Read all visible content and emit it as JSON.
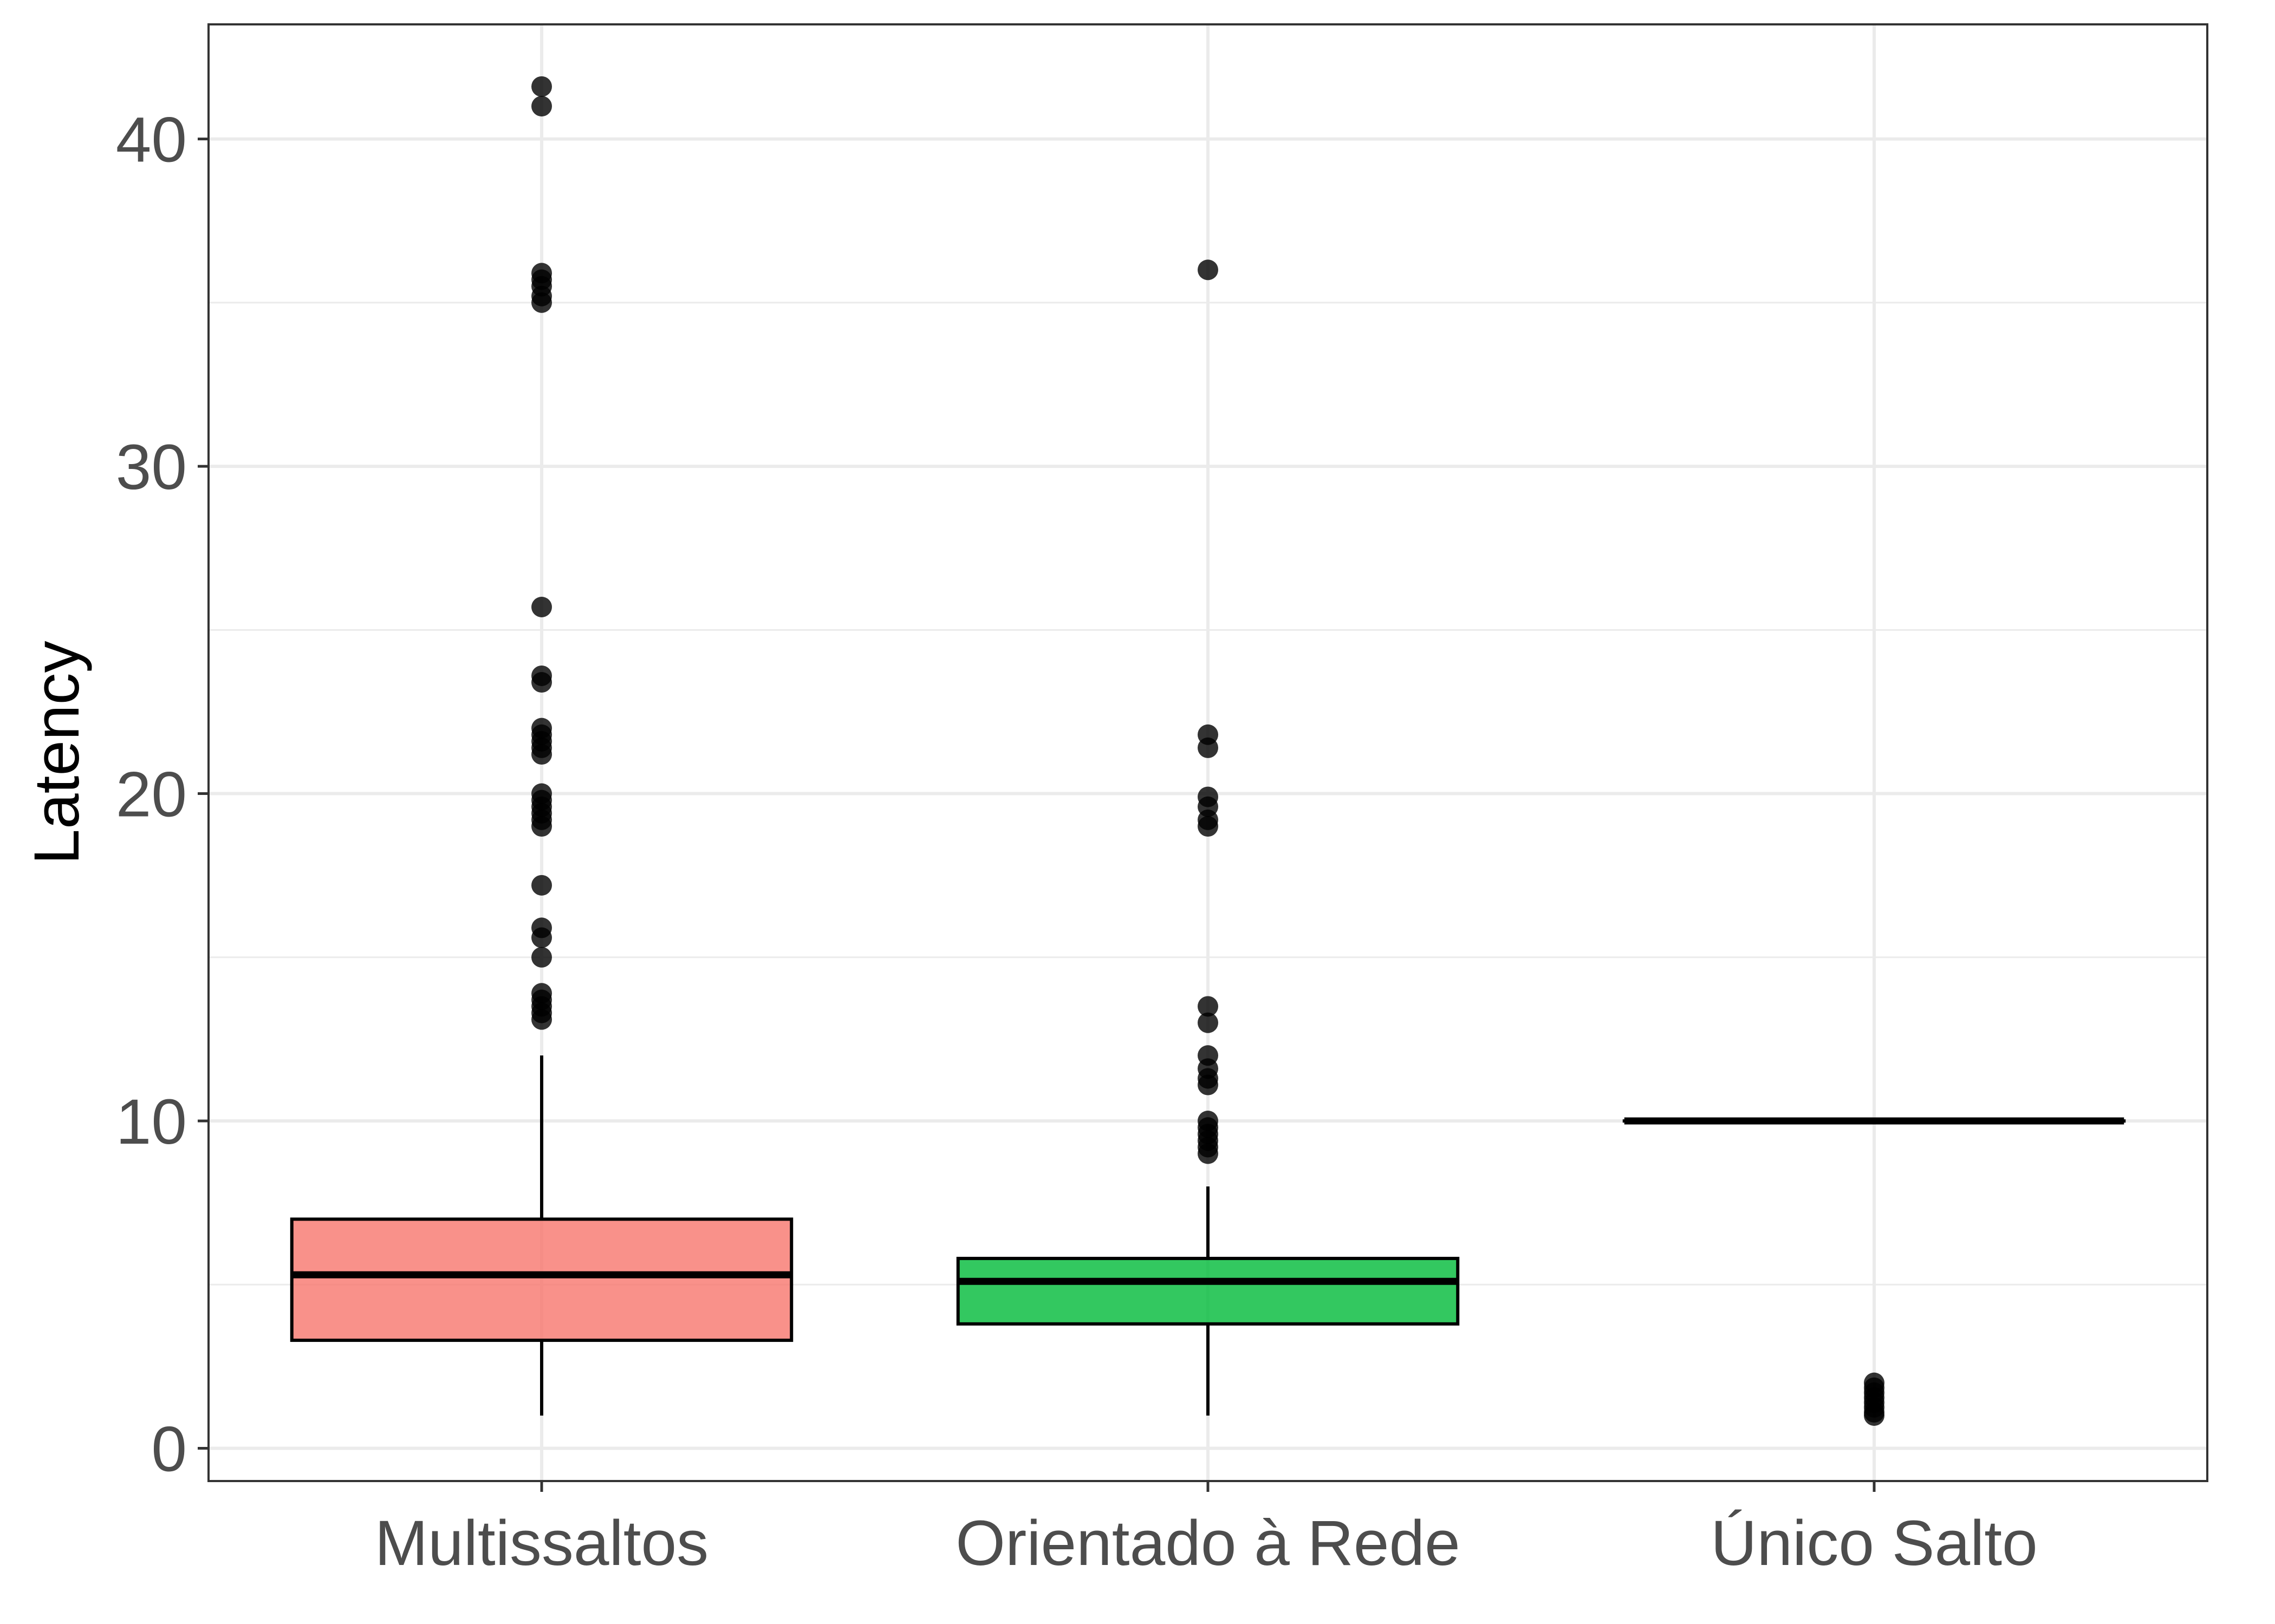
{
  "chart_data": {
    "type": "box",
    "title": "",
    "xlabel": "",
    "ylabel": "Latency",
    "ylim": [
      -1,
      43.5
    ],
    "yticks": [
      0,
      10,
      20,
      30,
      40
    ],
    "grid": true,
    "legend": "none",
    "categories": [
      "Multissaltos",
      "Orientado à Rede",
      "Único Salto"
    ],
    "boxes": [
      {
        "category": "Multissaltos",
        "color": "#F8766D",
        "whisker_low": 1,
        "q1": 3.3,
        "median": 5.3,
        "q3": 7,
        "whisker_high": 12,
        "outliers": [
          41.6,
          41,
          35.9,
          35.7,
          35.5,
          35.2,
          35,
          25.7,
          23.6,
          23.4,
          22,
          21.8,
          21.6,
          21.4,
          21.2,
          20,
          19.8,
          19.6,
          19.4,
          19.2,
          19,
          17.2,
          15.9,
          15.6,
          15,
          13.9,
          13.7,
          13.5,
          13.3,
          13.1
        ]
      },
      {
        "category": "Orientado à Rede",
        "color": "#00BA38",
        "whisker_low": 1,
        "q1": 3.8,
        "median": 5.1,
        "q3": 5.8,
        "whisker_high": 8,
        "outliers": [
          36,
          21.8,
          21.4,
          19.9,
          19.6,
          19.2,
          19,
          13.5,
          13,
          12,
          11.6,
          11.3,
          11.1,
          10,
          9.8,
          9.6,
          9.4,
          9.2,
          9
        ]
      },
      {
        "category": "Único Salto",
        "color": "#619CFF",
        "whisker_low": 10,
        "q1": 10,
        "median": 10,
        "q3": 10,
        "whisker_high": 10,
        "outliers": [
          2,
          1.85,
          1.7,
          1.55,
          1.4,
          1.25,
          1.1,
          1
        ]
      }
    ]
  }
}
